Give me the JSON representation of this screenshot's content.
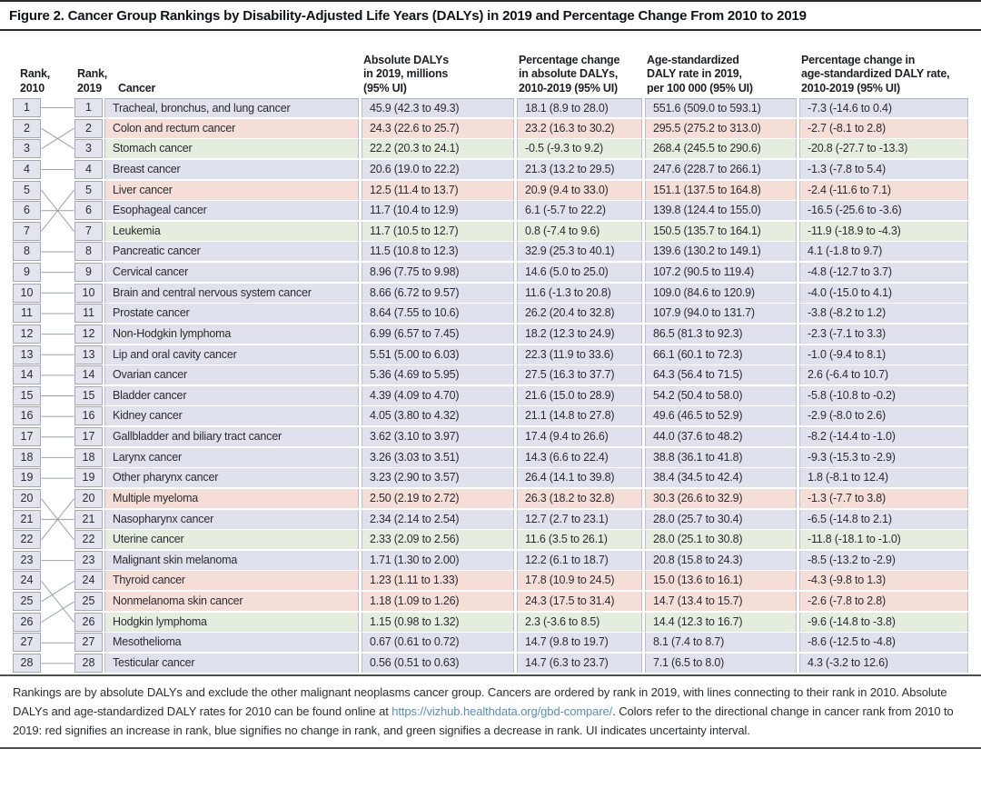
{
  "title": "Figure 2. Cancer Group Rankings by Disability-Adjusted Life Years (DALYs) in 2019 and Percentage Change From 2010 to 2019",
  "header": {
    "rank2010": "Rank,\n2010",
    "rank2019": "Rank,\n2019",
    "cancer": "Cancer",
    "abs_dalys": "Absolute DALYs\nin 2019, millions\n(95% UI)",
    "pct_abs": "Percentage change\nin absolute DALYs,\n2010-2019 (95% UI)",
    "age_std": "Age-standardized\nDALY rate in 2019,\nper 100 000 (95% UI)",
    "pct_age_std": "Percentage change in\nage-standardized DALY rate,\n2010-2019 (95% UI)"
  },
  "colors": {
    "up": "#f5ded7",
    "same": "#dfe1ec",
    "down": "#e5edde",
    "rank_box": "#e3e5ee",
    "connector_line": "#9aa0ac",
    "link": "#5b8db8"
  },
  "color_meaning": {
    "up": "red signifies an increase in rank",
    "same": "blue signifies no change in rank",
    "down": "green signifies a decrease in rank"
  },
  "rows": [
    {
      "rank_2010_box": 1,
      "rank_2019_box": 1,
      "rank_2010_line_target": 1,
      "rank_change": "same",
      "name": "Tracheal, bronchus, and lung cancer",
      "abs_dalys": "45.9 (42.3 to 49.3)",
      "pct_abs": "18.1 (8.9 to 28.0)",
      "age_std": "551.6 (509.0 to 593.1)",
      "pct_age_std": "-7.3 (-14.6 to 0.4)"
    },
    {
      "rank_2010_box": 2,
      "rank_2019_box": 2,
      "rank_2010_line_target": 3,
      "rank_change": "up",
      "name": "Colon and rectum cancer",
      "abs_dalys": "24.3 (22.6 to 25.7)",
      "pct_abs": "23.2 (16.3 to 30.2)",
      "age_std": "295.5 (275.2 to 313.0)",
      "pct_age_std": "-2.7 (-8.1 to 2.8)"
    },
    {
      "rank_2010_box": 3,
      "rank_2019_box": 3,
      "rank_2010_line_target": 2,
      "rank_change": "down",
      "name": "Stomach cancer",
      "abs_dalys": "22.2 (20.3 to 24.1)",
      "pct_abs": "-0.5 (-9.3 to 9.2)",
      "age_std": "268.4 (245.5 to 290.6)",
      "pct_age_std": "-20.8 (-27.7 to -13.3)"
    },
    {
      "rank_2010_box": 4,
      "rank_2019_box": 4,
      "rank_2010_line_target": 4,
      "rank_change": "same",
      "name": "Breast cancer",
      "abs_dalys": "20.6 (19.0 to 22.2)",
      "pct_abs": "21.3 (13.2 to 29.5)",
      "age_std": "247.6 (228.7 to 266.1)",
      "pct_age_std": "-1.3 (-7.8 to 5.4)"
    },
    {
      "rank_2010_box": 5,
      "rank_2019_box": 5,
      "rank_2010_line_target": 7,
      "rank_change": "up",
      "name": "Liver cancer",
      "abs_dalys": "12.5 (11.4 to 13.7)",
      "pct_abs": "20.9 (9.4 to 33.0)",
      "age_std": "151.1 (137.5 to 164.8)",
      "pct_age_std": "-2.4 (-11.6 to 7.1)"
    },
    {
      "rank_2010_box": 6,
      "rank_2019_box": 6,
      "rank_2010_line_target": 6,
      "rank_change": "same",
      "name": "Esophageal cancer",
      "abs_dalys": "11.7 (10.4 to 12.9)",
      "pct_abs": "6.1 (-5.7 to 22.2)",
      "age_std": "139.8 (124.4 to 155.0)",
      "pct_age_std": "-16.5 (-25.6 to -3.6)"
    },
    {
      "rank_2010_box": 7,
      "rank_2019_box": 7,
      "rank_2010_line_target": 5,
      "rank_change": "down",
      "name": "Leukemia",
      "abs_dalys": "11.7 (10.5 to 12.7)",
      "pct_abs": "0.8 (-7.4 to 9.6)",
      "age_std": "150.5 (135.7 to 164.1)",
      "pct_age_std": "-11.9 (-18.9 to -4.3)"
    },
    {
      "rank_2010_box": 8,
      "rank_2019_box": 8,
      "rank_2010_line_target": 8,
      "rank_change": "same",
      "name": "Pancreatic cancer",
      "abs_dalys": "11.5 (10.8 to 12.3)",
      "pct_abs": "32.9 (25.3 to 40.1)",
      "age_std": "139.6 (130.2 to 149.1)",
      "pct_age_std": "4.1 (-1.8 to 9.7)"
    },
    {
      "rank_2010_box": 9,
      "rank_2019_box": 9,
      "rank_2010_line_target": 9,
      "rank_change": "same",
      "name": "Cervical cancer",
      "abs_dalys": "8.96 (7.75 to 9.98)",
      "pct_abs": "14.6 (5.0 to 25.0)",
      "age_std": "107.2 (90.5 to 119.4)",
      "pct_age_std": "-4.8 (-12.7 to 3.7)"
    },
    {
      "rank_2010_box": 10,
      "rank_2019_box": 10,
      "rank_2010_line_target": 10,
      "rank_change": "same",
      "name": "Brain and central nervous system cancer",
      "abs_dalys": "8.66 (6.72 to 9.57)",
      "pct_abs": "11.6 (-1.3 to 20.8)",
      "age_std": "109.0 (84.6 to 120.9)",
      "pct_age_std": "-4.0 (-15.0 to 4.1)"
    },
    {
      "rank_2010_box": 11,
      "rank_2019_box": 11,
      "rank_2010_line_target": 11,
      "rank_change": "same",
      "name": "Prostate cancer",
      "abs_dalys": "8.64 (7.55 to 10.6)",
      "pct_abs": "26.2 (20.4 to 32.8)",
      "age_std": "107.9 (94.0 to 131.7)",
      "pct_age_std": "-3.8 (-8.2 to 1.2)"
    },
    {
      "rank_2010_box": 12,
      "rank_2019_box": 12,
      "rank_2010_line_target": 12,
      "rank_change": "same",
      "name": "Non-Hodgkin lymphoma",
      "abs_dalys": "6.99 (6.57 to 7.45)",
      "pct_abs": "18.2 (12.3 to 24.9)",
      "age_std": "86.5 (81.3 to 92.3)",
      "pct_age_std": "-2.3 (-7.1 to 3.3)"
    },
    {
      "rank_2010_box": 13,
      "rank_2019_box": 13,
      "rank_2010_line_target": 13,
      "rank_change": "same",
      "name": "Lip and oral cavity cancer",
      "abs_dalys": "5.51 (5.00 to 6.03)",
      "pct_abs": "22.3 (11.9 to 33.6)",
      "age_std": "66.1 (60.1 to 72.3)",
      "pct_age_std": "-1.0 (-9.4 to 8.1)"
    },
    {
      "rank_2010_box": 14,
      "rank_2019_box": 14,
      "rank_2010_line_target": 14,
      "rank_change": "same",
      "name": "Ovarian cancer",
      "abs_dalys": "5.36 (4.69 to 5.95)",
      "pct_abs": "27.5 (16.3 to 37.7)",
      "age_std": "64.3 (56.4 to 71.5)",
      "pct_age_std": "2.6 (-6.4 to 10.7)"
    },
    {
      "rank_2010_box": 15,
      "rank_2019_box": 15,
      "rank_2010_line_target": 15,
      "rank_change": "same",
      "name": "Bladder cancer",
      "abs_dalys": "4.39 (4.09 to 4.70)",
      "pct_abs": "21.6 (15.0 to 28.9)",
      "age_std": "54.2 (50.4 to 58.0)",
      "pct_age_std": "-5.8 (-10.8 to -0.2)"
    },
    {
      "rank_2010_box": 16,
      "rank_2019_box": 16,
      "rank_2010_line_target": 16,
      "rank_change": "same",
      "name": "Kidney cancer",
      "abs_dalys": "4.05 (3.80 to 4.32)",
      "pct_abs": "21.1 (14.8 to 27.8)",
      "age_std": "49.6 (46.5 to 52.9)",
      "pct_age_std": "-2.9 (-8.0 to 2.6)"
    },
    {
      "rank_2010_box": 17,
      "rank_2019_box": 17,
      "rank_2010_line_target": 17,
      "rank_change": "same",
      "name": "Gallbladder and biliary tract cancer",
      "abs_dalys": "3.62 (3.10 to 3.97)",
      "pct_abs": "17.4 (9.4 to 26.6)",
      "age_std": "44.0 (37.6 to 48.2)",
      "pct_age_std": "-8.2 (-14.4 to -1.0)"
    },
    {
      "rank_2010_box": 18,
      "rank_2019_box": 18,
      "rank_2010_line_target": 18,
      "rank_change": "same",
      "name": "Larynx cancer",
      "abs_dalys": "3.26 (3.03 to 3.51)",
      "pct_abs": "14.3 (6.6 to 22.4)",
      "age_std": "38.8 (36.1 to 41.8)",
      "pct_age_std": "-9.3 (-15.3 to -2.9)"
    },
    {
      "rank_2010_box": 19,
      "rank_2019_box": 19,
      "rank_2010_line_target": 19,
      "rank_change": "same",
      "name": "Other pharynx cancer",
      "abs_dalys": "3.23 (2.90 to 3.57)",
      "pct_abs": "26.4 (14.1 to 39.8)",
      "age_std": "38.4 (34.5 to 42.4)",
      "pct_age_std": "1.8 (-8.1 to 12.4)"
    },
    {
      "rank_2010_box": 20,
      "rank_2019_box": 20,
      "rank_2010_line_target": 22,
      "rank_change": "up",
      "name": "Multiple myeloma",
      "abs_dalys": "2.50 (2.19 to 2.72)",
      "pct_abs": "26.3 (18.2 to 32.8)",
      "age_std": "30.3 (26.6 to 32.9)",
      "pct_age_std": "-1.3 (-7.7 to 3.8)"
    },
    {
      "rank_2010_box": 21,
      "rank_2019_box": 21,
      "rank_2010_line_target": 21,
      "rank_change": "same",
      "name": "Nasopharynx cancer",
      "abs_dalys": "2.34 (2.14 to 2.54)",
      "pct_abs": "12.7 (2.7 to 23.1)",
      "age_std": "28.0 (25.7 to 30.4)",
      "pct_age_std": "-6.5 (-14.8 to 2.1)"
    },
    {
      "rank_2010_box": 22,
      "rank_2019_box": 22,
      "rank_2010_line_target": 20,
      "rank_change": "down",
      "name": "Uterine cancer",
      "abs_dalys": "2.33 (2.09 to 2.56)",
      "pct_abs": "11.6 (3.5 to 26.1)",
      "age_std": "28.0 (25.1 to 30.8)",
      "pct_age_std": "-11.8 (-18.1 to -1.0)"
    },
    {
      "rank_2010_box": 23,
      "rank_2019_box": 23,
      "rank_2010_line_target": 23,
      "rank_change": "same",
      "name": "Malignant skin melanoma",
      "abs_dalys": "1.71 (1.30 to 2.00)",
      "pct_abs": "12.2 (6.1 to 18.7)",
      "age_std": "20.8 (15.8 to 24.3)",
      "pct_age_std": "-8.5 (-13.2 to -2.9)"
    },
    {
      "rank_2010_box": 24,
      "rank_2019_box": 24,
      "rank_2010_line_target": 25,
      "rank_change": "up",
      "name": "Thyroid cancer",
      "abs_dalys": "1.23 (1.11 to 1.33)",
      "pct_abs": "17.8 (10.9 to 24.5)",
      "age_std": "15.0 (13.6 to 16.1)",
      "pct_age_std": "-4.3 (-9.8 to 1.3)"
    },
    {
      "rank_2010_box": 25,
      "rank_2019_box": 25,
      "rank_2010_line_target": 26,
      "rank_change": "up",
      "name": "Nonmelanoma skin cancer",
      "abs_dalys": "1.18 (1.09 to 1.26)",
      "pct_abs": "24.3 (17.5 to 31.4)",
      "age_std": "14.7 (13.4 to 15.7)",
      "pct_age_std": "-2.6 (-7.8 to 2.8)"
    },
    {
      "rank_2010_box": 26,
      "rank_2019_box": 26,
      "rank_2010_line_target": 24,
      "rank_change": "down",
      "name": "Hodgkin lymphoma",
      "abs_dalys": "1.15 (0.98 to 1.32)",
      "pct_abs": "2.3 (-3.6 to 8.5)",
      "age_std": "14.4 (12.3 to 16.7)",
      "pct_age_std": "-9.6 (-14.8 to -3.8)"
    },
    {
      "rank_2010_box": 27,
      "rank_2019_box": 27,
      "rank_2010_line_target": 27,
      "rank_change": "same",
      "name": "Mesothelioma",
      "abs_dalys": "0.67 (0.61 to 0.72)",
      "pct_abs": "14.7 (9.8 to 19.7)",
      "age_std": "8.1 (7.4 to 8.7)",
      "pct_age_std": "-8.6 (-12.5 to -4.8)"
    },
    {
      "rank_2010_box": 28,
      "rank_2019_box": 28,
      "rank_2010_line_target": 28,
      "rank_change": "same",
      "name": "Testicular cancer",
      "abs_dalys": "0.56 (0.51 to 0.63)",
      "pct_abs": "14.7 (6.3 to 23.7)",
      "age_std": "7.1 (6.5 to 8.0)",
      "pct_age_std": "4.3 (-3.2 to 12.6)"
    }
  ],
  "footnote": {
    "before": "Rankings are by absolute DALYs and exclude the other malignant neoplasms cancer group. Cancers are ordered by rank in 2019, with lines connecting to their rank in 2010. Absolute DALYs and age-standardized DALY rates for 2010 can be found online at ",
    "link_text": "https://vizhub.healthdata.org/gbd-compare/",
    "after": ". Colors refer to the directional change in cancer rank from 2010 to 2019: red signifies an increase in rank, blue signifies no change in rank, and green signifies a decrease in rank. UI indicates uncertainty interval."
  }
}
